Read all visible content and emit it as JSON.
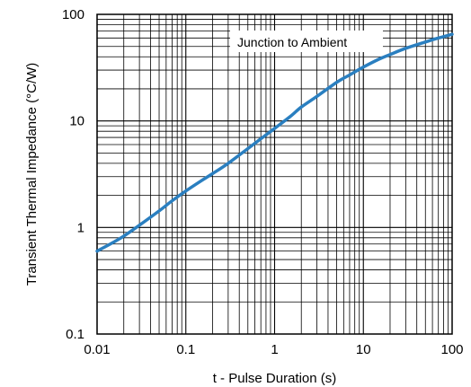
{
  "chart_data": {
    "type": "line",
    "title": "",
    "xlabel": "t - Pulse Duration (s)",
    "ylabel": "Transient Thermal Impedance (°C/W)",
    "x_scale": "log",
    "y_scale": "log",
    "xlim": [
      0.01,
      100
    ],
    "ylim": [
      0.1,
      100
    ],
    "grid": true,
    "x_ticks": [
      "0.01",
      "0.1",
      "1",
      "10",
      "100"
    ],
    "y_ticks": [
      "0.1",
      "1",
      "10",
      "100"
    ],
    "annotation": "Junction to Ambient",
    "line_color": "#2a7fc0",
    "series": [
      {
        "x": [
          0.01,
          0.015,
          0.02,
          0.03,
          0.05,
          0.07,
          0.1,
          0.15,
          0.2,
          0.3,
          0.5,
          0.7,
          1,
          1.5,
          2,
          3,
          5,
          7,
          10,
          15,
          20,
          30,
          50,
          70,
          100
        ],
        "y": [
          0.6,
          0.72,
          0.83,
          1.05,
          1.43,
          1.78,
          2.2,
          2.75,
          3.2,
          4.0,
          5.5,
          6.8,
          8.5,
          11,
          13.5,
          17,
          23,
          27,
          32,
          38,
          42,
          48,
          55,
          60,
          65
        ]
      }
    ]
  }
}
